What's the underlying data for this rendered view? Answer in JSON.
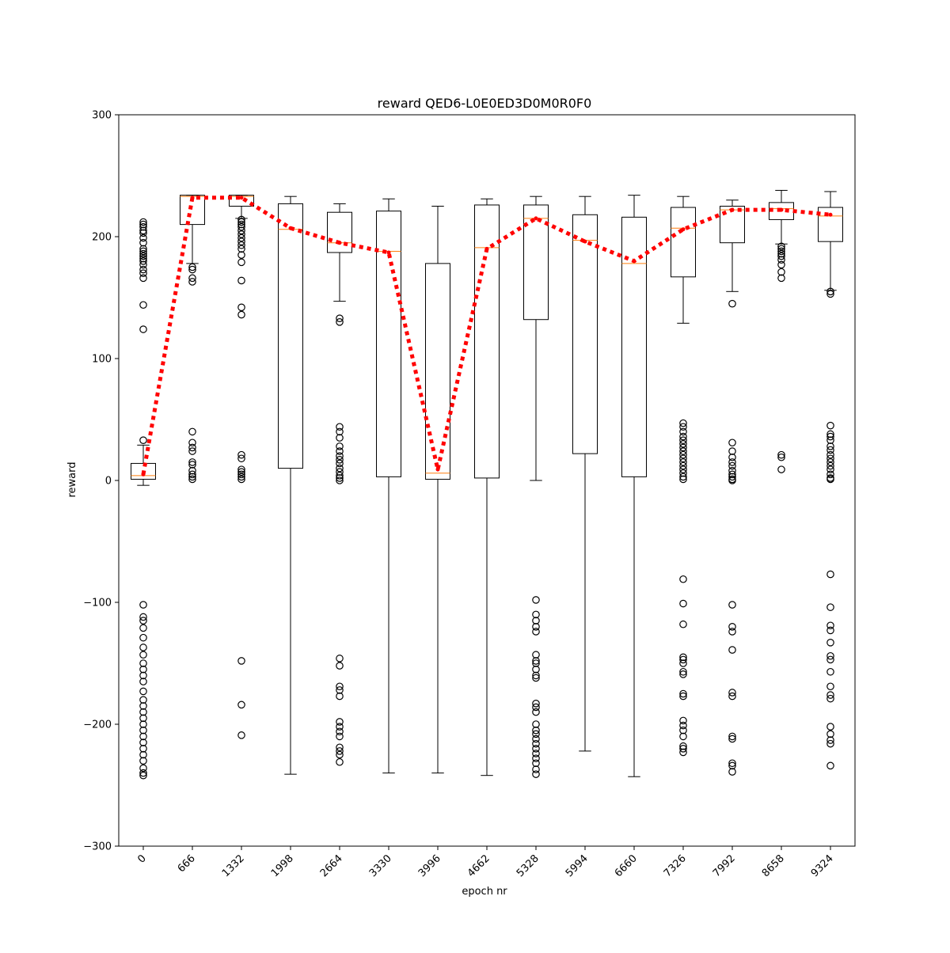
{
  "chart_data": {
    "type": "box",
    "title": "reward QED6-L0E0ED3D0M0R0F0",
    "xlabel": "epoch nr",
    "ylabel": "reward",
    "ylim": [
      -300,
      300
    ],
    "yticks": [
      -300,
      -200,
      -100,
      0,
      100,
      200,
      300
    ],
    "ytick_labels": [
      "−300",
      "−200",
      "−100",
      "0",
      "100",
      "200",
      "300"
    ],
    "categories": [
      "0",
      "666",
      "1332",
      "1998",
      "2664",
      "3330",
      "3996",
      "4662",
      "5328",
      "5994",
      "6660",
      "7326",
      "7992",
      "8658",
      "9324"
    ],
    "boxes": [
      {
        "whisker_low": -4,
        "q1": 1,
        "median": 4,
        "q3": 14,
        "whisker_high": 29,
        "outliers": [
          33,
          124,
          144,
          166,
          170,
          173,
          177,
          180,
          182,
          184,
          186,
          188,
          190,
          195,
          199,
          203,
          205,
          208,
          210,
          212,
          -102,
          -112,
          -115,
          -121,
          -129,
          -137,
          -143,
          -150,
          -155,
          -160,
          -165,
          -173,
          -180,
          -185,
          -190,
          -195,
          -200,
          -205,
          -210,
          -215,
          -220,
          -225,
          -230,
          -236,
          -240,
          -242
        ]
      },
      {
        "whisker_low": 178,
        "q1": 210,
        "median": 233,
        "q3": 234,
        "whisker_high": 234,
        "outliers": [
          40,
          31,
          27,
          24,
          15,
          13,
          8,
          5,
          3,
          1,
          163,
          166,
          173,
          175
        ]
      },
      {
        "whisker_low": 215,
        "q1": 225,
        "median": 233,
        "q3": 234,
        "whisker_high": 234,
        "outliers": [
          214,
          212,
          210,
          208,
          205,
          202,
          199,
          196,
          193,
          190,
          185,
          179,
          164,
          142,
          136,
          21,
          18,
          9,
          7,
          5,
          3,
          1,
          -148,
          -184,
          -209
        ]
      },
      {
        "whisker_low": -241,
        "q1": 10,
        "median": 206,
        "q3": 227,
        "whisker_high": 233,
        "outliers": []
      },
      {
        "whisker_low": 147,
        "q1": 187,
        "median": 195,
        "q3": 220,
        "whisker_high": 227,
        "outliers": [
          133,
          130,
          44,
          40,
          35,
          28,
          24,
          20,
          17,
          14,
          10,
          7,
          4,
          2,
          0,
          -146,
          -152,
          -169,
          -172,
          -177,
          -198,
          -202,
          -206,
          -210,
          -219,
          -222,
          -225,
          -231
        ]
      },
      {
        "whisker_low": -240,
        "q1": 3,
        "median": 188,
        "q3": 221,
        "whisker_high": 231,
        "outliers": []
      },
      {
        "whisker_low": -240,
        "q1": 1,
        "median": 6,
        "q3": 178,
        "whisker_high": 225,
        "outliers": []
      },
      {
        "whisker_low": -242,
        "q1": 2,
        "median": 191,
        "q3": 226,
        "whisker_high": 231,
        "outliers": []
      },
      {
        "whisker_low": 0,
        "q1": 132,
        "median": 215,
        "q3": 226,
        "whisker_high": 233,
        "outliers": [
          -98,
          -110,
          -115,
          -120,
          -124,
          -143,
          -148,
          -150,
          -155,
          -160,
          -162,
          -183,
          -186,
          -190,
          -200,
          -205,
          -208,
          -212,
          -216,
          -220,
          -224,
          -228,
          -232,
          -237,
          -241
        ]
      },
      {
        "whisker_low": -222,
        "q1": 22,
        "median": 197,
        "q3": 218,
        "whisker_high": 233,
        "outliers": []
      },
      {
        "whisker_low": -243,
        "q1": 3,
        "median": 178,
        "q3": 216,
        "whisker_high": 234,
        "outliers": []
      },
      {
        "whisker_low": 129,
        "q1": 167,
        "median": 207,
        "q3": 224,
        "whisker_high": 233,
        "outliers": [
          47,
          44,
          40,
          36,
          33,
          30,
          27,
          24,
          21,
          18,
          15,
          12,
          9,
          6,
          3,
          1,
          -81,
          -101,
          -118,
          -145,
          -147,
          -150,
          -157,
          -159,
          -175,
          -177,
          -197,
          -201,
          -205,
          -210,
          -218,
          -220,
          -223
        ]
      },
      {
        "whisker_low": 155,
        "q1": 195,
        "median": 222,
        "q3": 225,
        "whisker_high": 230,
        "outliers": [
          145,
          31,
          24,
          19,
          15,
          12,
          8,
          5,
          3,
          1,
          0,
          -102,
          -120,
          -124,
          -139,
          -174,
          -177,
          -210,
          -212,
          -232,
          -234,
          -239
        ]
      },
      {
        "whisker_low": 194,
        "q1": 214,
        "median": 223,
        "q3": 228,
        "whisker_high": 238,
        "outliers": [
          192,
          190,
          188,
          186,
          184,
          181,
          177,
          171,
          166,
          21,
          19,
          9
        ]
      },
      {
        "whisker_low": 156,
        "q1": 196,
        "median": 217,
        "q3": 224,
        "whisker_high": 237,
        "outliers": [
          155,
          153,
          45,
          38,
          36,
          33,
          28,
          25,
          21,
          18,
          15,
          12,
          9,
          5,
          2,
          1,
          -77,
          -104,
          -119,
          -123,
          -133,
          -144,
          -147,
          -157,
          -169,
          -176,
          -179,
          -202,
          -208,
          -213,
          -216,
          -234
        ]
      }
    ],
    "mean_line": {
      "values": [
        5,
        232,
        232,
        207,
        195,
        187,
        9,
        190,
        215,
        196,
        180,
        206,
        222,
        222,
        218
      ],
      "color": "#ff0000",
      "style": "dotted"
    },
    "median_color": "#ff7f0e",
    "box_color": "#000000",
    "grid": false
  }
}
